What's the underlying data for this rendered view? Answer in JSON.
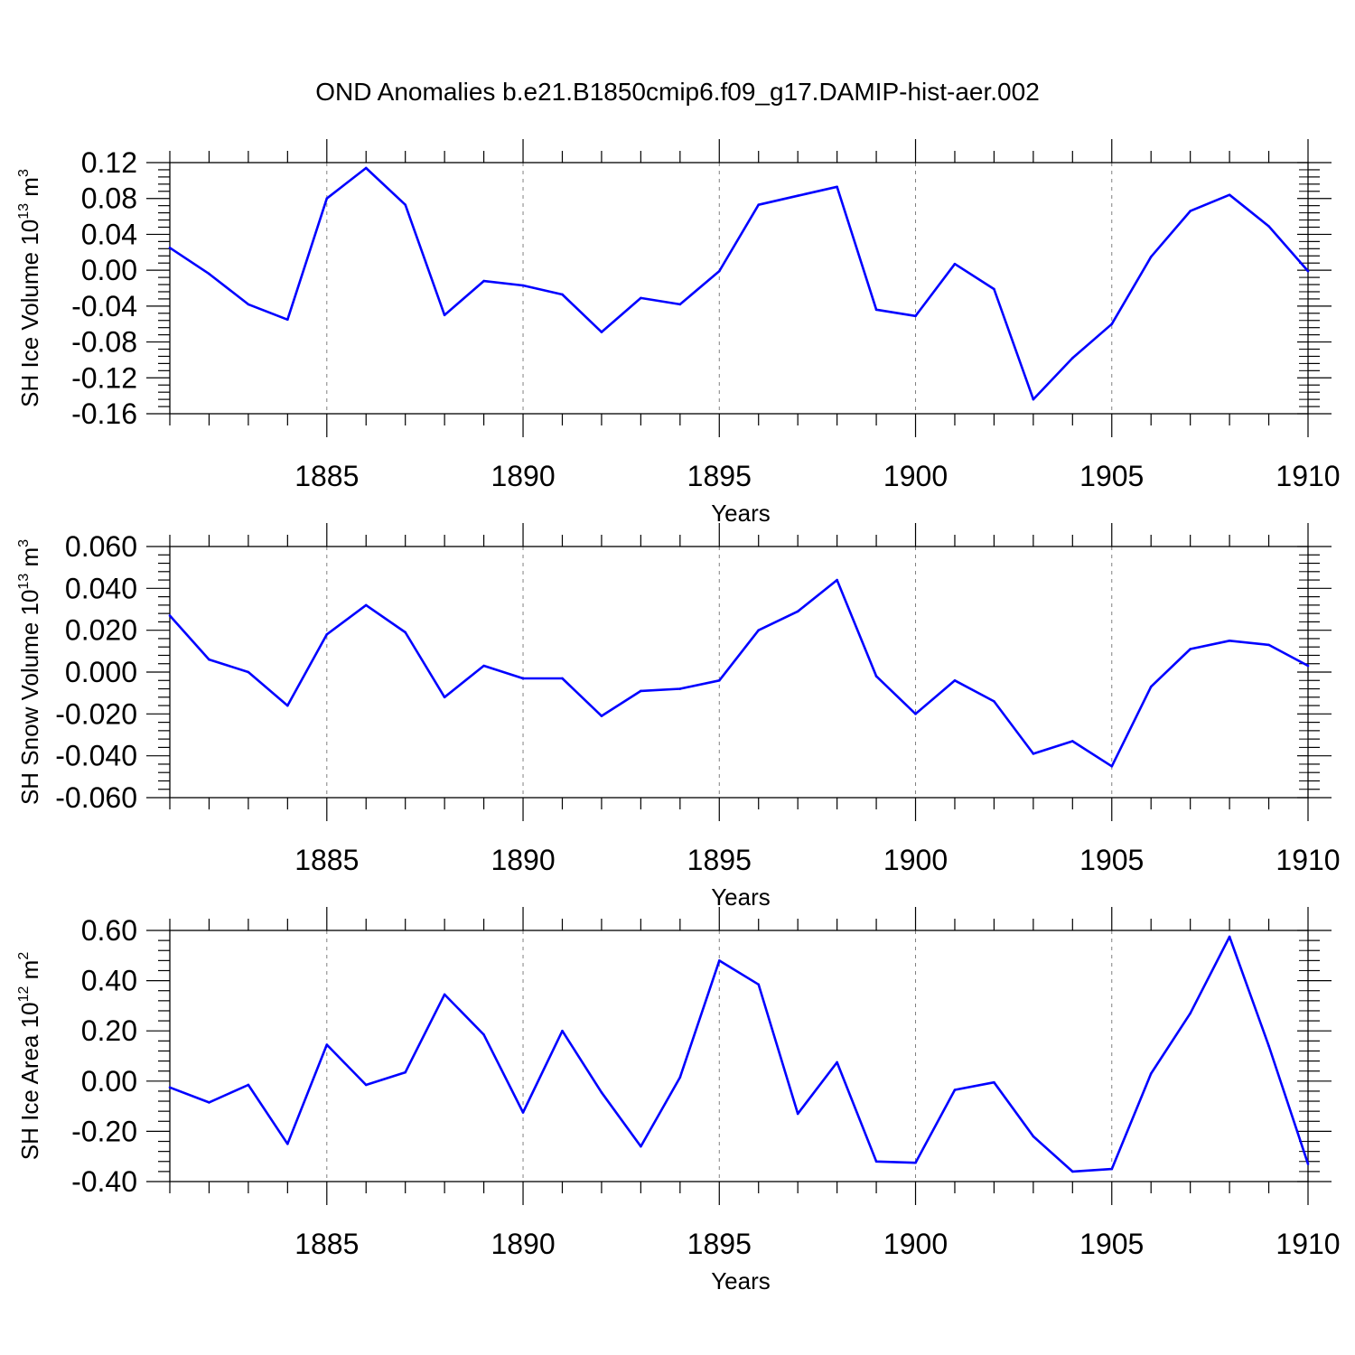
{
  "title": "OND Anomalies b.e21.B1850cmip6.f09_g17.DAMIP-hist-aer.002",
  "colors": {
    "line": "#0000ff",
    "axis": "#000000",
    "grid": "#808080"
  },
  "chart_data": [
    {
      "type": "line",
      "name": "ice-volume",
      "ylabel": {
        "base": "SH Ice Volume 10",
        "exp": "13",
        "unit": " m",
        "unit_exp": "3"
      },
      "xlabel": "Years",
      "xlim": [
        1881,
        1910
      ],
      "ylim": [
        -0.16,
        0.12
      ],
      "yticks": [
        -0.16,
        -0.12,
        -0.08,
        -0.04,
        0.0,
        0.04,
        0.08,
        0.12
      ],
      "ytick_labels": [
        "-0.16",
        "-0.12",
        "-0.08",
        "-0.04",
        "0.00",
        "0.04",
        "0.08",
        "0.12"
      ],
      "xticks": [
        1885,
        1890,
        1895,
        1900,
        1905,
        1910
      ],
      "xtick_labels": [
        "1885",
        "1890",
        "1895",
        "1900",
        "1905",
        "1910"
      ],
      "x": [
        1881,
        1882,
        1883,
        1884,
        1885,
        1886,
        1887,
        1888,
        1889,
        1890,
        1891,
        1892,
        1893,
        1894,
        1895,
        1896,
        1897,
        1898,
        1899,
        1900,
        1901,
        1902,
        1903,
        1904,
        1905,
        1906,
        1907,
        1908,
        1909,
        1910
      ],
      "values": [
        0.025,
        -0.004,
        -0.038,
        -0.055,
        0.08,
        0.114,
        0.073,
        -0.05,
        -0.012,
        -0.017,
        -0.027,
        -0.069,
        -0.031,
        -0.038,
        -0.001,
        0.073,
        0.083,
        0.093,
        -0.044,
        -0.051,
        0.007,
        -0.021,
        -0.144,
        -0.098,
        -0.06,
        0.015,
        0.066,
        0.084,
        0.049,
        -0.001
      ]
    },
    {
      "type": "line",
      "name": "snow-volume",
      "ylabel": {
        "base": "SH Snow Volume 10",
        "exp": "13",
        "unit": " m",
        "unit_exp": "3"
      },
      "xlabel": "Years",
      "xlim": [
        1881,
        1910
      ],
      "ylim": [
        -0.06,
        0.06
      ],
      "yticks": [
        -0.06,
        -0.04,
        -0.02,
        0.0,
        0.02,
        0.04,
        0.06
      ],
      "ytick_labels": [
        "-0.060",
        "-0.040",
        "-0.020",
        "0.000",
        "0.020",
        "0.040",
        "0.060"
      ],
      "xticks": [
        1885,
        1890,
        1895,
        1900,
        1905,
        1910
      ],
      "xtick_labels": [
        "1885",
        "1890",
        "1895",
        "1900",
        "1905",
        "1910"
      ],
      "x": [
        1881,
        1882,
        1883,
        1884,
        1885,
        1886,
        1887,
        1888,
        1889,
        1890,
        1891,
        1892,
        1893,
        1894,
        1895,
        1896,
        1897,
        1898,
        1899,
        1900,
        1901,
        1902,
        1903,
        1904,
        1905,
        1906,
        1907,
        1908,
        1909,
        1910
      ],
      "values": [
        0.027,
        0.006,
        0.0,
        -0.016,
        0.018,
        0.032,
        0.019,
        -0.012,
        0.003,
        -0.003,
        -0.003,
        -0.021,
        -0.009,
        -0.008,
        -0.004,
        0.02,
        0.029,
        0.044,
        -0.002,
        -0.02,
        -0.004,
        -0.014,
        -0.039,
        -0.033,
        -0.045,
        -0.007,
        0.011,
        0.015,
        0.013,
        0.003
      ]
    },
    {
      "type": "line",
      "name": "ice-area",
      "ylabel": {
        "base": "SH Ice Area 10",
        "exp": "12",
        "unit": " m",
        "unit_exp": "2"
      },
      "xlabel": "Years",
      "xlim": [
        1881,
        1910
      ],
      "ylim": [
        -0.4,
        0.6
      ],
      "yticks": [
        -0.4,
        -0.2,
        0.0,
        0.2,
        0.4,
        0.6
      ],
      "ytick_labels": [
        "-0.40",
        "-0.20",
        "0.00",
        "0.20",
        "0.40",
        "0.60"
      ],
      "xticks": [
        1885,
        1890,
        1895,
        1900,
        1905,
        1910
      ],
      "xtick_labels": [
        "1885",
        "1890",
        "1895",
        "1900",
        "1905",
        "1910"
      ],
      "x": [
        1881,
        1882,
        1883,
        1884,
        1885,
        1886,
        1887,
        1888,
        1889,
        1890,
        1891,
        1892,
        1893,
        1894,
        1895,
        1896,
        1897,
        1898,
        1899,
        1900,
        1901,
        1902,
        1903,
        1904,
        1905,
        1906,
        1907,
        1908,
        1909,
        1910
      ],
      "values": [
        -0.025,
        -0.085,
        -0.015,
        -0.25,
        0.145,
        -0.015,
        0.035,
        0.345,
        0.185,
        -0.125,
        0.2,
        -0.045,
        -0.26,
        0.015,
        0.48,
        0.385,
        -0.13,
        0.075,
        -0.32,
        -0.325,
        -0.035,
        -0.005,
        -0.22,
        -0.36,
        -0.35,
        0.03,
        0.27,
        0.575,
        0.14,
        -0.33
      ]
    }
  ]
}
